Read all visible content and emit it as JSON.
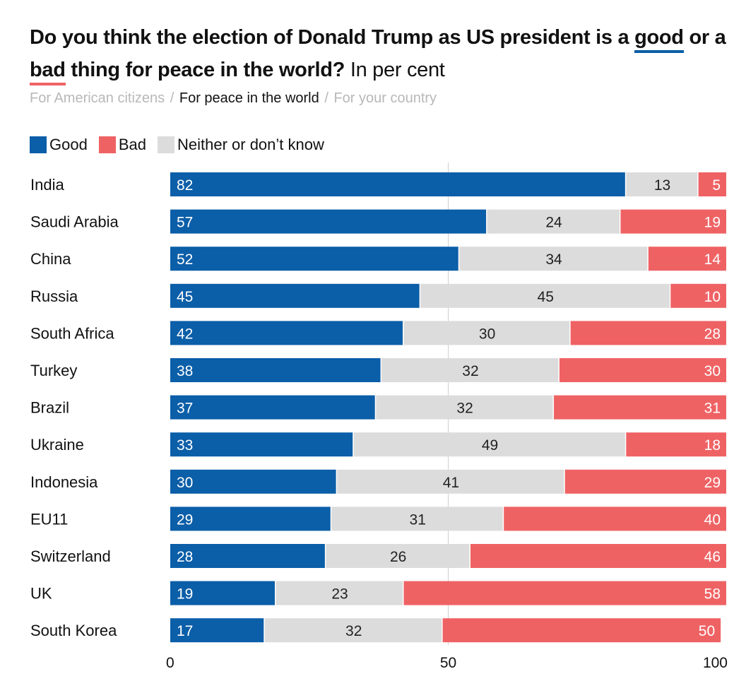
{
  "title": {
    "part1": "Do you think the election of Donald Trump as US president is a ",
    "good_word": "good",
    "part2": " or a ",
    "bad_word": "bad",
    "part3": " thing for peace in the world?",
    "unit": " In per cent"
  },
  "tabs": [
    {
      "label": "For American citizens",
      "active": false
    },
    {
      "label": "For peace in the world",
      "active": true
    },
    {
      "label": "For your country",
      "active": false
    }
  ],
  "tab_separator": "/",
  "colors": {
    "good": "#0b5ea8",
    "bad": "#ef6264",
    "neither": "#dcdcdc",
    "gridline": "#d0d0d0"
  },
  "chart_data": {
    "type": "bar",
    "orientation": "horizontal",
    "stacked": true,
    "categories": [
      "India",
      "Saudi Arabia",
      "China",
      "Russia",
      "South Africa",
      "Turkey",
      "Brazil",
      "Ukraine",
      "Indonesia",
      "EU11",
      "Switzerland",
      "UK",
      "South Korea"
    ],
    "series": [
      {
        "name": "Good",
        "values": [
          82,
          57,
          52,
          45,
          42,
          38,
          37,
          33,
          30,
          29,
          28,
          19,
          17
        ]
      },
      {
        "name": "Neither or don’t know",
        "values": [
          13,
          24,
          34,
          45,
          30,
          32,
          32,
          49,
          41,
          31,
          26,
          23,
          32
        ]
      },
      {
        "name": "Bad",
        "values": [
          5,
          19,
          14,
          10,
          28,
          30,
          31,
          18,
          29,
          40,
          46,
          58,
          50
        ]
      }
    ],
    "xlim": [
      0,
      100
    ],
    "xticks": [
      0,
      50,
      100
    ],
    "legend_position": "top-left"
  }
}
